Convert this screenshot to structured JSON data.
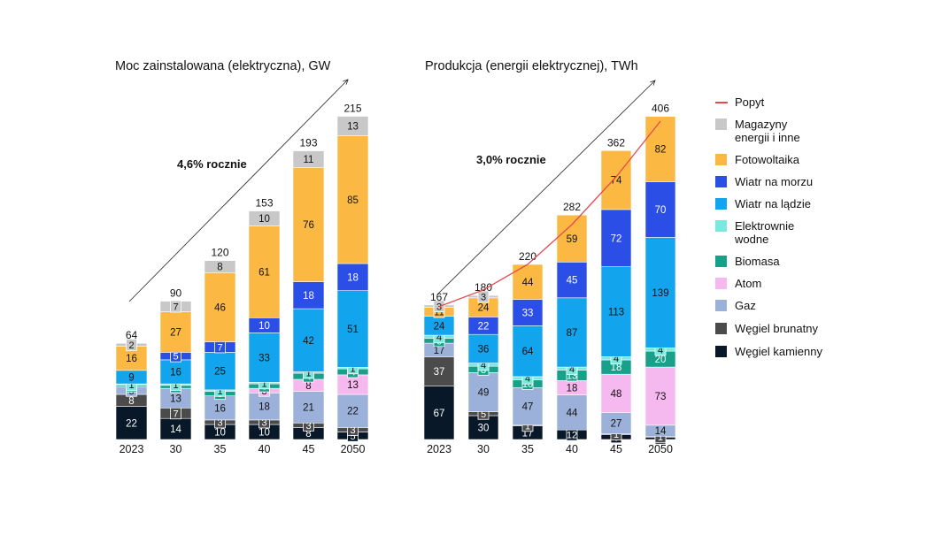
{
  "colors": {
    "popyt": "#e5484d",
    "magazyny": "#c8c8c8",
    "fotowoltaika": "#fbb943",
    "wiatr_morze": "#2b4ee6",
    "wiatr_lad": "#12a4ec",
    "wodne": "#7ae8dc",
    "biomasa": "#18a08a",
    "atom": "#f5b8ef",
    "gaz": "#9cb1d9",
    "brunatny": "#4b4b4b",
    "kamienny": "#081828"
  },
  "legend": [
    {
      "key": "popyt",
      "label": "Popyt",
      "kind": "line"
    },
    {
      "key": "magazyny",
      "label": "Magazyny\nenergii i inne",
      "kind": "box"
    },
    {
      "key": "fotowoltaika",
      "label": "Fotowoltaika",
      "kind": "box"
    },
    {
      "key": "wiatr_morze",
      "label": "Wiatr na morzu",
      "kind": "box"
    },
    {
      "key": "wiatr_lad",
      "label": "Wiatr na lądzie",
      "kind": "box"
    },
    {
      "key": "wodne",
      "label": "Elektrownie\nwodne",
      "kind": "box"
    },
    {
      "key": "biomasa",
      "label": "Biomasa",
      "kind": "box"
    },
    {
      "key": "atom",
      "label": "Atom",
      "kind": "box"
    },
    {
      "key": "gaz",
      "label": "Gaz",
      "kind": "box"
    },
    {
      "key": "brunatny",
      "label": "Węgiel brunatny",
      "kind": "box"
    },
    {
      "key": "kamienny",
      "label": "Węgiel kamienny",
      "kind": "box"
    }
  ],
  "chart_data": [
    {
      "type": "bar",
      "stacked": true,
      "title": "Moc zainstalowana (elektryczna), GW",
      "annotation": "4,6% rocznie",
      "categories": [
        "2023",
        "30",
        "35",
        "40",
        "45",
        "2050"
      ],
      "totals": [
        "64",
        "90",
        "120",
        "153",
        "193",
        "215"
      ],
      "series": [
        {
          "key": "kamienny",
          "name": "Węgiel kamienny",
          "values": [
            22,
            14,
            10,
            10,
            8,
            5
          ]
        },
        {
          "key": "brunatny",
          "name": "Węgiel brunatny",
          "values": [
            8,
            7,
            3,
            3,
            3,
            3
          ]
        },
        {
          "key": "gaz",
          "name": "Gaz",
          "values": [
            5,
            13,
            16,
            18,
            21,
            22
          ]
        },
        {
          "key": "atom",
          "name": "Atom",
          "values": [
            0,
            0,
            0,
            3,
            8,
            13
          ]
        },
        {
          "key": "biomasa",
          "name": "Biomasa",
          "values": [
            1,
            2,
            3,
            3,
            4,
            4
          ]
        },
        {
          "key": "wodne",
          "name": "Elektrownie wodne",
          "values": [
            1,
            1,
            1,
            1,
            1,
            1
          ]
        },
        {
          "key": "wiatr_lad",
          "name": "Wiatr na lądzie",
          "values": [
            9,
            16,
            25,
            33,
            42,
            51
          ]
        },
        {
          "key": "wiatr_morze",
          "name": "Wiatr na morzu",
          "values": [
            0,
            5,
            7,
            10,
            18,
            18
          ]
        },
        {
          "key": "fotowoltaika",
          "name": "Fotowoltaika",
          "values": [
            16,
            27,
            46,
            61,
            76,
            85
          ]
        },
        {
          "key": "magazyny",
          "name": "Magazyny energii i inne",
          "values": [
            2,
            7,
            8,
            10,
            11,
            13
          ]
        }
      ]
    },
    {
      "type": "bar",
      "stacked": true,
      "title": "Produkcja (energii elektrycznej), TWh",
      "annotation": "3,0% rocznie",
      "categories": [
        "2023",
        "30",
        "35",
        "40",
        "45",
        "2050"
      ],
      "totals": [
        "167",
        "180",
        "220",
        "282",
        "362",
        "406"
      ],
      "series": [
        {
          "key": "kamienny",
          "name": "Węgiel kamienny",
          "values": [
            67,
            30,
            17,
            12,
            6,
            3
          ]
        },
        {
          "key": "brunatny",
          "name": "Węgiel brunatny",
          "values": [
            37,
            5,
            1,
            0,
            1,
            1
          ]
        },
        {
          "key": "gaz",
          "name": "Gaz",
          "values": [
            17,
            49,
            47,
            44,
            27,
            14
          ]
        },
        {
          "key": "atom",
          "name": "Atom",
          "values": [
            0,
            0,
            0,
            18,
            48,
            73
          ]
        },
        {
          "key": "biomasa",
          "name": "Biomasa",
          "values": [
            6,
            8,
            10,
            13,
            18,
            20
          ]
        },
        {
          "key": "wodne",
          "name": "Elektrownie wodne",
          "values": [
            4,
            4,
            4,
            4,
            4,
            4
          ]
        },
        {
          "key": "wiatr_lad",
          "name": "Wiatr na lądzie",
          "values": [
            24,
            36,
            64,
            87,
            113,
            139
          ]
        },
        {
          "key": "wiatr_morze",
          "name": "Wiatr na morzu",
          "values": [
            0,
            22,
            33,
            45,
            72,
            70
          ]
        },
        {
          "key": "fotowoltaika",
          "name": "Fotowoltaika",
          "values": [
            11,
            24,
            44,
            59,
            74,
            82
          ]
        },
        {
          "key": "magazyny",
          "name": "Magazyny energii i inne",
          "values": [
            3,
            3,
            0,
            0,
            0,
            0
          ]
        }
      ],
      "demand_line": {
        "name": "Popyt",
        "values": [
          167,
          188,
          220,
          270,
          330,
          400
        ]
      }
    }
  ]
}
